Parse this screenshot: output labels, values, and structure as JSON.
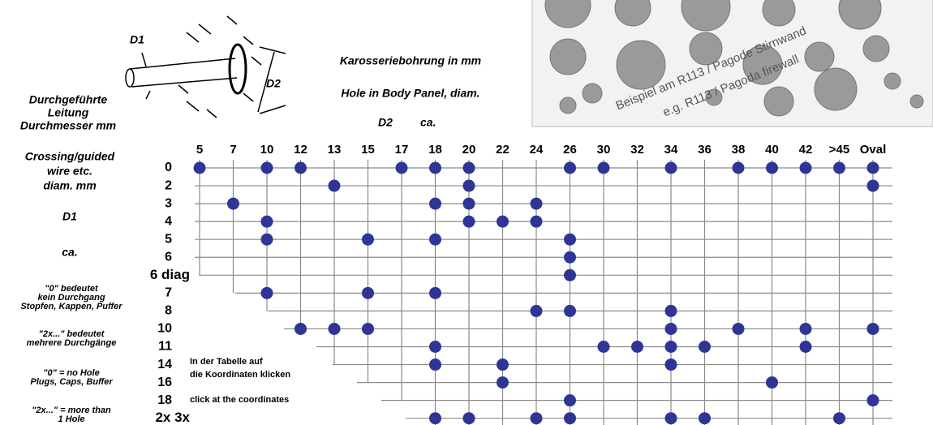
{
  "illustration": {
    "d1": "D1",
    "d2": "D2"
  },
  "wire_caption": [
    "Durchgeführte",
    "Leitung",
    "Durchmesser mm"
  ],
  "hole_caption": {
    "de": "Karosseriebohrung in mm",
    "en": "Hole in Body Panel, diam.",
    "d2": "D2",
    "ca": "ca."
  },
  "row_caption": {
    "en": [
      "Crossing/guided",
      "wire etc.",
      "diam. mm"
    ],
    "d1": "D1",
    "ca": "ca."
  },
  "notes": [
    [
      "\"0\" bedeutet",
      "kein Durchgang",
      "Stopfen, Kappen, Puffer"
    ],
    [
      "\"2x...\" bedeutet",
      "mehrere Durchgänge"
    ],
    [
      "\"0\" = no Hole",
      "Plugs, Caps, Buffer"
    ],
    [
      "\"2x...\" = more than",
      "1 Hole"
    ]
  ],
  "instructions": {
    "de": [
      "In der Tabelle auf",
      "die Koordinaten klicken"
    ],
    "en": "click at the coordinates"
  },
  "photo": {
    "caption_de": "Beispiel am R113 / Pagode Stirnwand",
    "caption_en": "e.g. R113 / Pagoda firewall"
  },
  "columns": [
    "5",
    "7",
    "10",
    "12",
    "13",
    "15",
    "17",
    "18",
    "20",
    "22",
    "24",
    "26",
    "30",
    "32",
    "34",
    "36",
    "38",
    "40",
    "42",
    ">45",
    "Oval"
  ],
  "rows": [
    {
      "label": "0",
      "holes": [
        "5",
        "10",
        "12",
        "17",
        "18",
        "20",
        "26",
        "30",
        "34",
        "38",
        "40",
        "42",
        ">45",
        "Oval"
      ]
    },
    {
      "label": "2",
      "holes": [
        "13",
        "20",
        "Oval"
      ]
    },
    {
      "label": "3",
      "holes": [
        "7",
        "18",
        "20",
        "24"
      ]
    },
    {
      "label": "4",
      "holes": [
        "10",
        "20",
        "22",
        "24"
      ]
    },
    {
      "label": "5",
      "holes": [
        "10",
        "15",
        "18",
        "26"
      ]
    },
    {
      "label": "6",
      "holes": [
        "26"
      ]
    },
    {
      "label": "6 diag",
      "holes": [
        "26"
      ]
    },
    {
      "label": "7",
      "holes": [
        "10",
        "15",
        "18"
      ]
    },
    {
      "label": "8",
      "holes": [
        "24",
        "26",
        "34"
      ]
    },
    {
      "label": "10",
      "holes": [
        "12",
        "13",
        "15",
        "34",
        "38",
        "42",
        "Oval"
      ]
    },
    {
      "label": "11",
      "holes": [
        "18",
        "30",
        "32",
        "34",
        "36",
        "42"
      ]
    },
    {
      "label": "14",
      "holes": [
        "18",
        "22",
        "34"
      ]
    },
    {
      "label": "16",
      "holes": [
        "22",
        "40"
      ]
    },
    {
      "label": "18",
      "holes": [
        "26",
        "Oval"
      ]
    },
    {
      "label": "2x 3x",
      "holes": [
        "18",
        "20",
        "24",
        "26",
        "34",
        "36",
        ">45"
      ]
    }
  ]
}
